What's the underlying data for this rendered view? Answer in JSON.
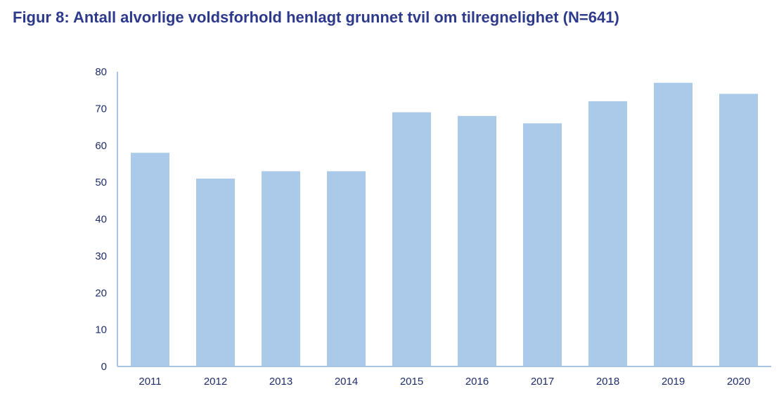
{
  "chart_data": {
    "type": "bar",
    "title": "Figur 8: Antall alvorlige voldsforhold henlagt grunnet tvil om tilregnelighet (N=641)",
    "xlabel": "",
    "ylabel": "",
    "categories": [
      "2011",
      "2012",
      "2013",
      "2014",
      "2015",
      "2016",
      "2017",
      "2018",
      "2019",
      "2020"
    ],
    "values": [
      58,
      51,
      53,
      53,
      69,
      68,
      66,
      72,
      77,
      74
    ],
    "ylim": [
      0,
      80
    ],
    "yticks": [
      "0",
      "10",
      "20",
      "30",
      "40",
      "50",
      "60",
      "70",
      "80"
    ],
    "grid": false,
    "legend": "none",
    "colors": {
      "bar": "#abc9e9",
      "axis": "#a9c4e4",
      "title": "#2d3a8c",
      "tick_text": "#1f2d6b"
    }
  }
}
